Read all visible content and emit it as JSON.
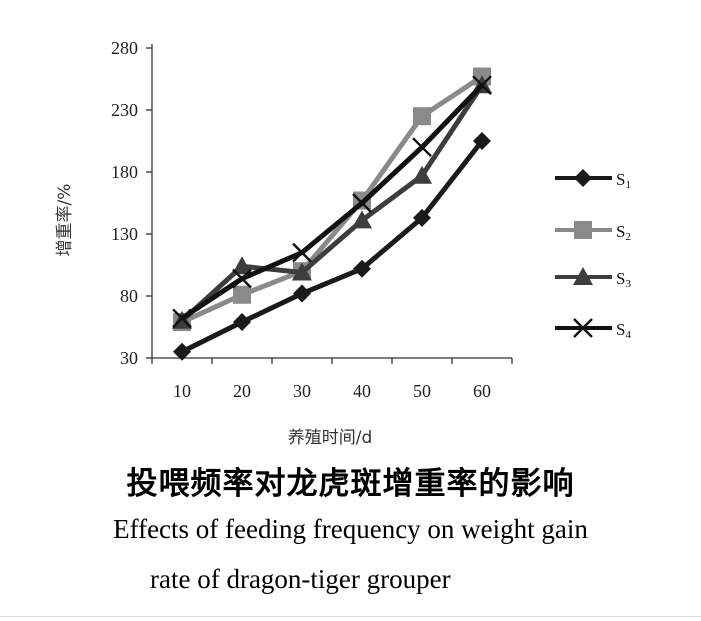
{
  "chart_data": {
    "type": "line",
    "x": [
      10,
      20,
      30,
      40,
      50,
      60
    ],
    "xticks": [
      "10",
      "20",
      "30",
      "40",
      "50",
      "60"
    ],
    "yticks": [
      "30",
      "80",
      "130",
      "180",
      "230",
      "280"
    ],
    "xlim": [
      5,
      65
    ],
    "ylim": [
      30,
      280
    ],
    "xlabel": "养殖时间/d",
    "ylabel": "增重率/%",
    "grid": false,
    "legend_position": "right",
    "series": [
      {
        "name": "S",
        "sub": "1",
        "marker": "diamond",
        "color": "#1a1a1a",
        "values": [
          35,
          59,
          82,
          102,
          143,
          205
        ]
      },
      {
        "name": "S",
        "sub": "2",
        "marker": "square",
        "color": "#8a8a8a",
        "values": [
          59,
          81,
          100,
          157,
          225,
          257
        ]
      },
      {
        "name": "S",
        "sub": "3",
        "marker": "triangle",
        "color": "#3d3d3d",
        "values": [
          60,
          104,
          99,
          141,
          177,
          250
        ]
      },
      {
        "name": "S",
        "sub": "4",
        "marker": "x",
        "color": "#111111",
        "values": [
          62,
          94,
          115,
          155,
          200,
          250
        ]
      }
    ]
  },
  "caption": {
    "title_cn": "投喂频率对龙虎斑增重率的影响",
    "title_en_line1": "Effects of feeding frequency on weight gain",
    "title_en_line2": "rate of dragon-tiger grouper"
  }
}
